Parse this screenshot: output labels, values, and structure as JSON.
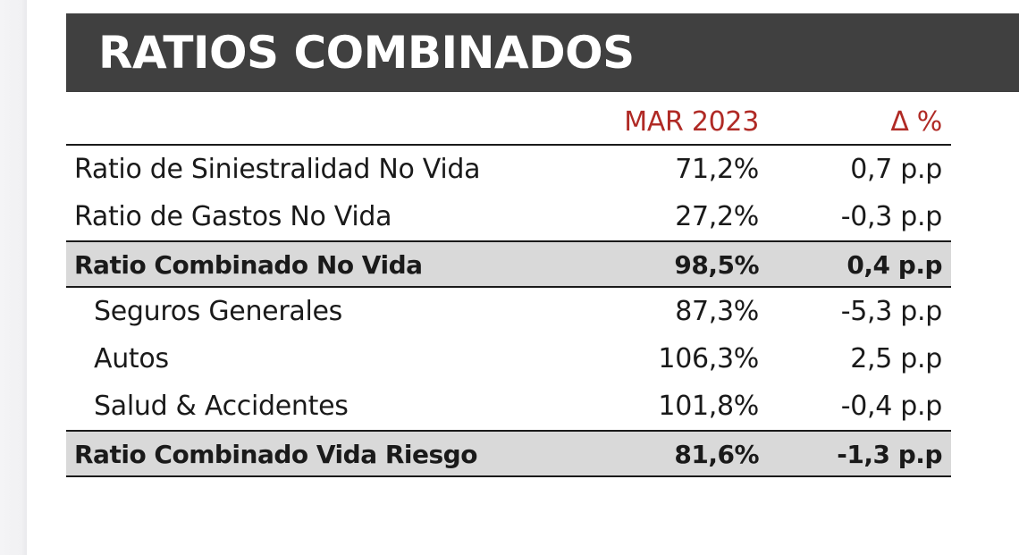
{
  "title": "RATIOS COMBINADOS",
  "table": {
    "header": {
      "label": "",
      "col1": "MAR 2023",
      "col2": "Δ %"
    },
    "rows": [
      {
        "label": "Ratio de Siniestralidad No Vida",
        "col1": "71,2%",
        "col2": "0,7 p.p"
      },
      {
        "label": "Ratio de Gastos No Vida",
        "col1": "27,2%",
        "col2": "-0,3 p.p"
      },
      {
        "label": "Ratio Combinado No Vida",
        "col1": "98,5%",
        "col2": "0,4 p.p"
      },
      {
        "label": "Seguros Generales",
        "col1": "87,3%",
        "col2": "-5,3 p.p"
      },
      {
        "label": "Autos",
        "col1": "106,3%",
        "col2": "2,5 p.p"
      },
      {
        "label": "Salud & Accidentes",
        "col1": "101,8%",
        "col2": "-0,4 p.p"
      },
      {
        "label": "Ratio Combinado Vida Riesgo",
        "col1": "81,6%",
        "col2": "-1,3 p.p"
      }
    ]
  },
  "colors": {
    "title_bar": "#404040",
    "header_text": "#b02a25",
    "total_row_bg": "#d9d9d9"
  }
}
